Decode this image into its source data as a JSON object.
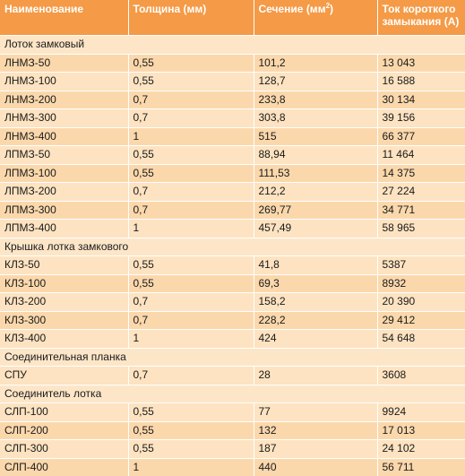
{
  "headers": {
    "name": "Наименование",
    "thickness": "Толщина (мм)",
    "section_pre": "Сечение (мм",
    "section_sup": "2",
    "section_post": ")",
    "current": "Ток короткого замыкания (А)"
  },
  "groups": [
    {
      "title": "Лоток замковый",
      "rows": [
        [
          "ЛНМЗ-50",
          "0,55",
          "101,2",
          "13 043"
        ],
        [
          "ЛНМЗ-100",
          "0,55",
          "128,7",
          "16 588"
        ],
        [
          "ЛНМЗ-200",
          "0,7",
          "233,8",
          "30 134"
        ],
        [
          "ЛНМЗ-300",
          "0,7",
          "303,8",
          "39 156"
        ],
        [
          "ЛНМЗ-400",
          "1",
          "515",
          "66 377"
        ],
        [
          "ЛПМЗ-50",
          "0,55",
          "88,94",
          "11 464"
        ],
        [
          "ЛПМЗ-100",
          "0,55",
          "111,53",
          "14 375"
        ],
        [
          "ЛПМЗ-200",
          "0,7",
          "212,2",
          "27 224"
        ],
        [
          "ЛПМЗ-300",
          "0,7",
          "269,77",
          "34 771"
        ],
        [
          "ЛПМЗ-400",
          "1",
          "457,49",
          "58 965"
        ]
      ]
    },
    {
      "title": "Крышка лотка замкового",
      "rows": [
        [
          "КЛЗ-50",
          "0,55",
          "41,8",
          "5387"
        ],
        [
          "КЛЗ-100",
          "0,55",
          "69,3",
          "8932"
        ],
        [
          "КЛЗ-200",
          "0,7",
          "158,2",
          "20 390"
        ],
        [
          "КЛЗ-300",
          "0,7",
          "228,2",
          "29 412"
        ],
        [
          "КЛЗ-400",
          "1",
          "424",
          "54 648"
        ]
      ]
    },
    {
      "title": "Соединительная планка",
      "rows": [
        [
          "СПУ",
          "0,7",
          "28",
          "3608"
        ]
      ]
    },
    {
      "title": "Соединитель лотка",
      "rows": [
        [
          "СЛП-100",
          "0,55",
          "77",
          "9924"
        ],
        [
          "СЛП-200",
          "0,55",
          "132",
          "17 013"
        ],
        [
          "СЛП-300",
          "0,55",
          "187",
          "24 102"
        ],
        [
          "СЛП-400",
          "1",
          "440",
          "56 711"
        ]
      ]
    }
  ]
}
